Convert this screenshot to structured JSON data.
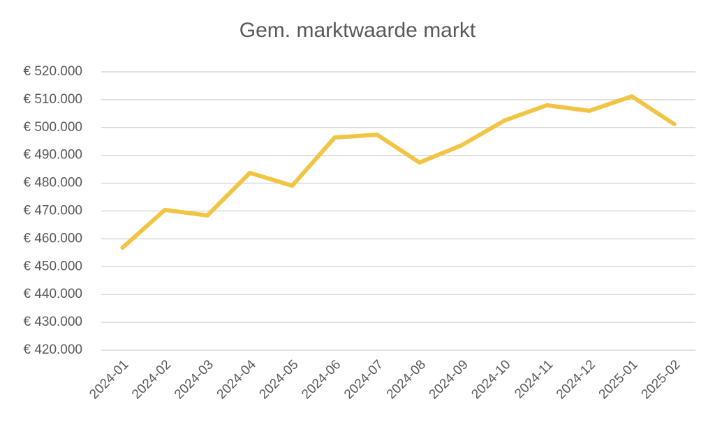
{
  "chart_data": {
    "type": "line",
    "title": "Gem. marktwaarde markt",
    "categories": [
      "2024-01",
      "2024-02",
      "2024-03",
      "2024-04",
      "2024-05",
      "2024-06",
      "2024-07",
      "2024-08",
      "2024-09",
      "2024-10",
      "2024-11",
      "2024-12",
      "2025-01",
      "2025-02"
    ],
    "values": [
      456800,
      470400,
      468400,
      483700,
      479100,
      496400,
      497400,
      487400,
      493700,
      502500,
      508000,
      506000,
      511200,
      501200
    ],
    "color": "#f2c443",
    "ylim": [
      420000,
      520000
    ],
    "yticks": [
      {
        "value": 420000,
        "label": "€ 420.000"
      },
      {
        "value": 430000,
        "label": "€ 430.000"
      },
      {
        "value": 440000,
        "label": "€ 440.000"
      },
      {
        "value": 450000,
        "label": "€ 450.000"
      },
      {
        "value": 460000,
        "label": "€ 460.000"
      },
      {
        "value": 470000,
        "label": "€ 470.000"
      },
      {
        "value": 480000,
        "label": "€ 480.000"
      },
      {
        "value": 490000,
        "label": "€ 490.000"
      },
      {
        "value": 500000,
        "label": "€ 500.000"
      },
      {
        "value": 510000,
        "label": "€ 510.000"
      },
      {
        "value": 520000,
        "label": "€ 520.000"
      }
    ],
    "grid": true
  }
}
